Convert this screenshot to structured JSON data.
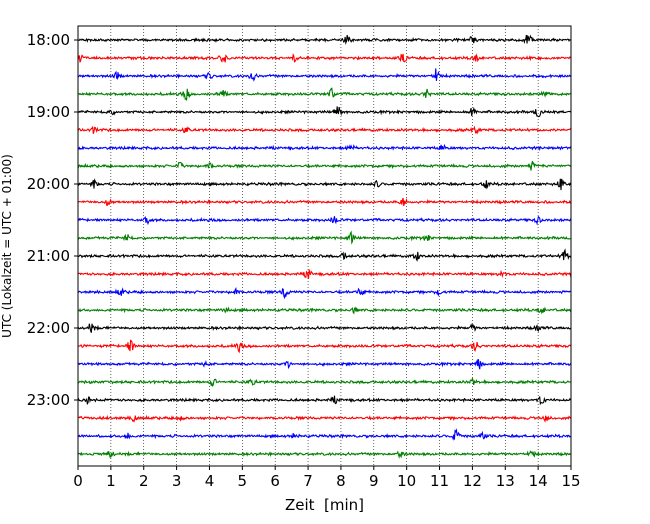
{
  "chart_data": {
    "type": "line",
    "title": "",
    "xlabel": "Zeit  [min]",
    "ylabel": "UTC (Lokalzeit = UTC + 01:00)",
    "xlim": [
      0,
      15
    ],
    "x_ticks": [
      "0",
      "1",
      "2",
      "3",
      "4",
      "5",
      "6",
      "7",
      "8",
      "9",
      "10",
      "11",
      "12",
      "13",
      "14",
      "15"
    ],
    "y_tick_labels": [
      "18:00",
      "19:00",
      "20:00",
      "21:00",
      "22:00",
      "23:00"
    ],
    "grid_x": true,
    "grid_style": "dotted",
    "legend": "none",
    "trace_colors": [
      "#000000",
      "#ff0000",
      "#0000ff",
      "#008000"
    ],
    "series": [
      {
        "time": "18:00",
        "color": "#000000",
        "events": [
          {
            "t": 8.2,
            "a": 0.5
          },
          {
            "t": 12.0,
            "a": 0.45
          },
          {
            "t": 13.7,
            "a": 0.7
          }
        ]
      },
      {
        "time": "18:15",
        "color": "#ff0000",
        "events": [
          {
            "t": 0.1,
            "a": 0.5
          },
          {
            "t": 4.4,
            "a": 0.8
          },
          {
            "t": 6.6,
            "a": 0.3
          },
          {
            "t": 9.9,
            "a": 0.4
          },
          {
            "t": 12.1,
            "a": 0.3
          }
        ]
      },
      {
        "time": "18:30",
        "color": "#0000ff",
        "events": [
          {
            "t": 1.2,
            "a": 0.4
          },
          {
            "t": 4.0,
            "a": 0.35
          },
          {
            "t": 5.3,
            "a": 0.4
          },
          {
            "t": 10.9,
            "a": 0.7
          }
        ]
      },
      {
        "time": "18:45",
        "color": "#008000",
        "events": [
          {
            "t": 3.3,
            "a": 0.5
          },
          {
            "t": 4.4,
            "a": 0.35
          },
          {
            "t": 7.7,
            "a": 0.6
          },
          {
            "t": 10.6,
            "a": 0.5
          },
          {
            "t": 14.2,
            "a": 0.3
          }
        ]
      },
      {
        "time": "19:00",
        "color": "#000000",
        "events": [
          {
            "t": 1.0,
            "a": 0.3
          },
          {
            "t": 7.9,
            "a": 0.6
          },
          {
            "t": 12.0,
            "a": 0.35
          },
          {
            "t": 14.0,
            "a": 0.45
          }
        ]
      },
      {
        "time": "19:15",
        "color": "#ff0000",
        "events": [
          {
            "t": 0.5,
            "a": 0.3
          },
          {
            "t": 3.3,
            "a": 0.3
          },
          {
            "t": 12.1,
            "a": 0.3
          }
        ]
      },
      {
        "time": "19:30",
        "color": "#0000ff",
        "events": [
          {
            "t": 8.3,
            "a": 0.35
          },
          {
            "t": 11.1,
            "a": 0.3
          }
        ]
      },
      {
        "time": "19:45",
        "color": "#008000",
        "events": [
          {
            "t": 3.1,
            "a": 0.3
          },
          {
            "t": 4.0,
            "a": 0.3
          },
          {
            "t": 13.8,
            "a": 0.4
          }
        ]
      },
      {
        "time": "20:00",
        "color": "#000000",
        "events": [
          {
            "t": 0.5,
            "a": 0.35
          },
          {
            "t": 9.1,
            "a": 0.3
          },
          {
            "t": 12.4,
            "a": 0.35
          },
          {
            "t": 14.7,
            "a": 0.5
          }
        ]
      },
      {
        "time": "20:15",
        "color": "#ff0000",
        "events": [
          {
            "t": 0.9,
            "a": 0.35
          },
          {
            "t": 9.9,
            "a": 0.45
          }
        ]
      },
      {
        "time": "20:30",
        "color": "#0000ff",
        "events": [
          {
            "t": 2.1,
            "a": 0.3
          },
          {
            "t": 7.8,
            "a": 0.3
          },
          {
            "t": 14.0,
            "a": 0.3
          }
        ]
      },
      {
        "time": "20:45",
        "color": "#008000",
        "events": [
          {
            "t": 1.5,
            "a": 0.35
          },
          {
            "t": 8.3,
            "a": 0.5
          },
          {
            "t": 10.6,
            "a": 0.3
          }
        ]
      },
      {
        "time": "21:00",
        "color": "#000000",
        "events": [
          {
            "t": 8.1,
            "a": 0.3
          },
          {
            "t": 10.3,
            "a": 0.4
          },
          {
            "t": 14.8,
            "a": 0.55
          }
        ]
      },
      {
        "time": "21:15",
        "color": "#ff0000",
        "events": [
          {
            "t": 7.0,
            "a": 0.5
          },
          {
            "t": 12.9,
            "a": 0.25
          }
        ]
      },
      {
        "time": "21:30",
        "color": "#0000ff",
        "events": [
          {
            "t": 1.3,
            "a": 0.3
          },
          {
            "t": 4.8,
            "a": 0.3
          },
          {
            "t": 6.3,
            "a": 0.55
          },
          {
            "t": 8.6,
            "a": 0.45
          },
          {
            "t": 11.0,
            "a": 0.3
          }
        ]
      },
      {
        "time": "21:45",
        "color": "#008000",
        "events": [
          {
            "t": 4.5,
            "a": 0.25
          },
          {
            "t": 8.4,
            "a": 0.25
          },
          {
            "t": 14.1,
            "a": 0.3
          }
        ]
      },
      {
        "time": "22:00",
        "color": "#000000",
        "events": [
          {
            "t": 0.4,
            "a": 0.45
          },
          {
            "t": 12.0,
            "a": 0.35
          },
          {
            "t": 14.0,
            "a": 0.3
          }
        ]
      },
      {
        "time": "22:15",
        "color": "#ff0000",
        "events": [
          {
            "t": 1.6,
            "a": 0.7
          },
          {
            "t": 4.9,
            "a": 0.45
          },
          {
            "t": 12.1,
            "a": 0.45
          }
        ]
      },
      {
        "time": "22:30",
        "color": "#0000ff",
        "events": [
          {
            "t": 3.9,
            "a": 0.25
          },
          {
            "t": 6.4,
            "a": 0.3
          },
          {
            "t": 12.2,
            "a": 0.45
          }
        ]
      },
      {
        "time": "22:45",
        "color": "#008000",
        "events": [
          {
            "t": 4.1,
            "a": 0.4
          },
          {
            "t": 5.3,
            "a": 0.3
          },
          {
            "t": 12.0,
            "a": 0.35
          }
        ]
      },
      {
        "time": "23:00",
        "color": "#000000",
        "events": [
          {
            "t": 0.3,
            "a": 0.3
          },
          {
            "t": 7.8,
            "a": 0.3
          },
          {
            "t": 14.1,
            "a": 0.4
          }
        ]
      },
      {
        "time": "23:15",
        "color": "#ff0000",
        "events": [
          {
            "t": 1.7,
            "a": 0.3
          },
          {
            "t": 3.1,
            "a": 0.25
          },
          {
            "t": 14.2,
            "a": 0.35
          }
        ]
      },
      {
        "time": "23:30",
        "color": "#0000ff",
        "events": [
          {
            "t": 1.5,
            "a": 0.3
          },
          {
            "t": 6.6,
            "a": 0.3
          },
          {
            "t": 11.5,
            "a": 0.65
          },
          {
            "t": 12.3,
            "a": 0.3
          }
        ]
      },
      {
        "time": "23:45",
        "color": "#008000",
        "events": [
          {
            "t": 1.0,
            "a": 0.3
          },
          {
            "t": 9.8,
            "a": 0.25
          },
          {
            "t": 13.8,
            "a": 0.35
          }
        ]
      }
    ]
  }
}
